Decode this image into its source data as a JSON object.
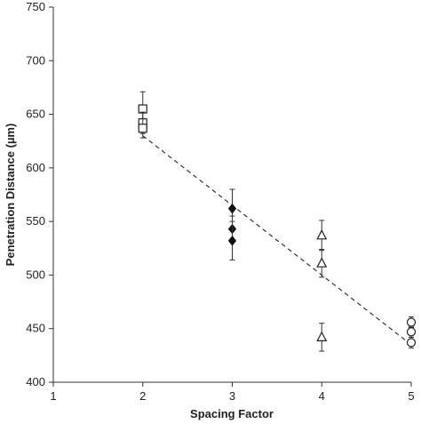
{
  "chart_data": {
    "type": "scatter",
    "title": "",
    "xlabel": "Spacing Factor",
    "ylabel": "Penetration Distance (µm)",
    "xlim": [
      1,
      5
    ],
    "ylim": [
      400,
      750
    ],
    "xticks": [
      1,
      2,
      3,
      4,
      5
    ],
    "yticks": [
      400,
      450,
      500,
      550,
      600,
      650,
      700,
      750
    ],
    "grid": false,
    "legend": "none",
    "series": [
      {
        "marker": "square-open",
        "points": [
          {
            "x": 2,
            "y": 655,
            "err": 16
          },
          {
            "x": 2,
            "y": 642,
            "err": 10
          },
          {
            "x": 2,
            "y": 637,
            "err": 9
          }
        ]
      },
      {
        "marker": "diamond-filled",
        "points": [
          {
            "x": 3,
            "y": 562,
            "err": 18
          },
          {
            "x": 3,
            "y": 543,
            "err": 12
          },
          {
            "x": 3,
            "y": 532,
            "err": 18
          }
        ]
      },
      {
        "marker": "triangle-open",
        "points": [
          {
            "x": 4,
            "y": 537,
            "err": 14
          },
          {
            "x": 4,
            "y": 511,
            "err": 13
          },
          {
            "x": 4,
            "y": 442,
            "err": 13
          }
        ]
      },
      {
        "marker": "circle-open",
        "points": [
          {
            "x": 5,
            "y": 456,
            "err": 5
          },
          {
            "x": 5,
            "y": 447,
            "err": 5
          },
          {
            "x": 5,
            "y": 437,
            "err": 5
          }
        ]
      }
    ],
    "trendline": {
      "style": "dashed",
      "x": [
        2,
        5
      ],
      "y": [
        630,
        435
      ]
    }
  }
}
